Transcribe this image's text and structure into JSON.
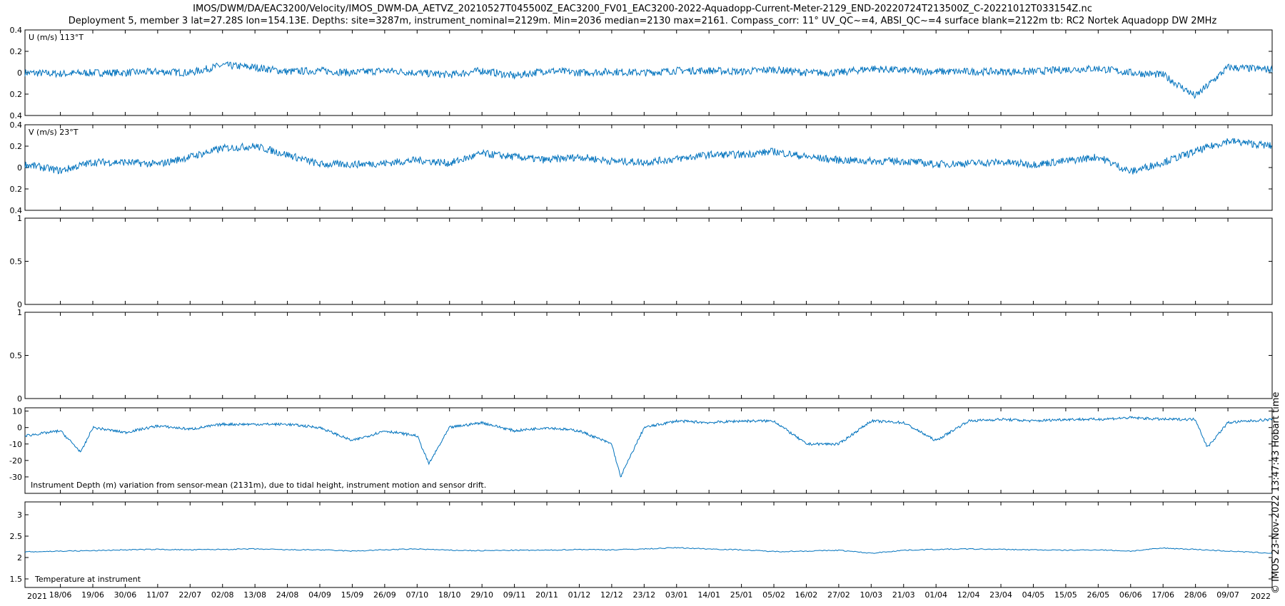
{
  "title": "IMOS/DWM/DA/EAC3200/Velocity/IMOS_DWM-DA_AETVZ_20210527T045500Z_EAC3200_FV01_EAC3200-2022-Aquadopp-Current-Meter-2129_END-20220724T213500Z_C-20221012T033154Z.nc",
  "subtitle": "Deployment 5, member 3 lat=27.28S lon=154.13E. Depths: site=3287m, instrument_nominal=2129m. Min=2036 median=2130 max=2161. Compass_corr: 11° UV_QC~=4, ABSI_QC~=4 surface blank=2122m tb: RC2 Nortek Aquadopp DW 2MHz",
  "stamp": "© IMOS 23-Nov-2022 13:47:43 Hobart time",
  "colors": {
    "series": "#0072BD",
    "axes": "#000000"
  },
  "chart_data": [
    {
      "type": "line",
      "label": "U (m/s) 113°T",
      "ylim": [
        -0.4,
        0.4
      ],
      "yticks": [
        0.4,
        0.2,
        0,
        -0.2,
        -0.4
      ],
      "ytick_labels": [
        "0.4",
        "0.2",
        "0",
        "0.2",
        "0.4"
      ],
      "x": [
        "2021-05-27",
        "2021-06-08",
        "2021-06-19",
        "2021-06-30",
        "2021-07-11",
        "2021-07-22",
        "2021-08-02",
        "2021-08-13",
        "2021-08-24",
        "2021-09-04",
        "2021-09-15",
        "2021-09-26",
        "2021-10-07",
        "2021-10-18",
        "2021-10-29",
        "2021-11-09",
        "2021-11-20",
        "2021-12-01",
        "2021-12-12",
        "2021-12-23",
        "2022-01-03",
        "2022-01-14",
        "2022-01-25",
        "2022-02-05",
        "2022-02-16",
        "2022-02-27",
        "2022-03-10",
        "2022-03-21",
        "2022-04-01",
        "2022-04-12",
        "2022-04-23",
        "2022-05-04",
        "2022-05-15",
        "2022-05-26",
        "2022-06-06",
        "2022-06-17",
        "2022-06-28",
        "2022-07-09",
        "2022-07-24"
      ],
      "y": [
        0.0,
        -0.01,
        0.0,
        0.0,
        0.01,
        0.0,
        0.07,
        0.05,
        0.01,
        0.02,
        0.0,
        0.02,
        0.0,
        -0.02,
        0.02,
        -0.03,
        0.02,
        0.0,
        0.01,
        0.0,
        0.02,
        0.02,
        0.01,
        0.03,
        0.0,
        0.0,
        0.04,
        0.02,
        0.01,
        0.01,
        0.01,
        0.01,
        0.03,
        0.04,
        0.0,
        -0.02,
        -0.22,
        0.05,
        0.03
      ]
    },
    {
      "type": "line",
      "label": "V (m/s) 23°T",
      "ylim": [
        -0.4,
        0.4
      ],
      "yticks": [
        0.4,
        0.2,
        0,
        -0.2,
        -0.4
      ],
      "ytick_labels": [
        "0.4",
        "0.2",
        "0",
        "0.2",
        "0.4"
      ],
      "x": [
        "2021-05-27",
        "2021-06-08",
        "2021-06-19",
        "2021-06-30",
        "2021-07-11",
        "2021-07-22",
        "2021-08-02",
        "2021-08-13",
        "2021-08-24",
        "2021-09-04",
        "2021-09-15",
        "2021-09-26",
        "2021-10-07",
        "2021-10-18",
        "2021-10-29",
        "2021-11-09",
        "2021-11-20",
        "2021-12-01",
        "2021-12-12",
        "2021-12-23",
        "2022-01-03",
        "2022-01-14",
        "2022-01-25",
        "2022-02-05",
        "2022-02-16",
        "2022-02-27",
        "2022-03-10",
        "2022-03-21",
        "2022-04-01",
        "2022-04-12",
        "2022-04-23",
        "2022-05-04",
        "2022-05-15",
        "2022-05-26",
        "2022-06-06",
        "2022-06-17",
        "2022-06-28",
        "2022-07-09",
        "2022-07-24"
      ],
      "y": [
        0.03,
        -0.03,
        0.05,
        0.05,
        0.03,
        0.1,
        0.18,
        0.2,
        0.12,
        0.03,
        0.03,
        0.04,
        0.07,
        0.04,
        0.13,
        0.1,
        0.07,
        0.1,
        0.06,
        0.05,
        0.08,
        0.12,
        0.12,
        0.15,
        0.1,
        0.07,
        0.06,
        0.06,
        0.03,
        0.04,
        0.05,
        0.03,
        0.06,
        0.1,
        -0.04,
        0.05,
        0.15,
        0.25,
        0.2
      ]
    },
    {
      "type": "line",
      "label": "",
      "ylim": [
        0,
        1
      ],
      "yticks": [
        1,
        0.5,
        0
      ],
      "ytick_labels": [
        "1",
        "0.5",
        "0"
      ],
      "x": [],
      "y": []
    },
    {
      "type": "line",
      "label": "",
      "ylim": [
        0,
        1
      ],
      "yticks": [
        1,
        0.5,
        0
      ],
      "ytick_labels": [
        "1",
        "0.5",
        "0"
      ],
      "x": [],
      "y": []
    },
    {
      "type": "line",
      "label": "Instrument Depth (m) variation from sensor-mean (2131m), due to tidal height, instrument motion and sensor drift.",
      "ylim": [
        -40,
        12
      ],
      "yticks": [
        10,
        0,
        -10,
        -20,
        -30
      ],
      "ytick_labels": [
        "10",
        "0",
        "-10",
        "-20",
        "-30"
      ],
      "x": [
        "2021-05-27",
        "2021-06-08",
        "2021-06-15",
        "2021-06-19",
        "2021-06-30",
        "2021-07-11",
        "2021-07-22",
        "2021-08-02",
        "2021-08-13",
        "2021-08-24",
        "2021-09-04",
        "2021-09-15",
        "2021-09-26",
        "2021-10-07",
        "2021-10-11",
        "2021-10-18",
        "2021-10-29",
        "2021-11-09",
        "2021-11-20",
        "2021-12-01",
        "2021-12-12",
        "2021-12-15",
        "2021-12-23",
        "2022-01-03",
        "2022-01-14",
        "2022-01-25",
        "2022-02-05",
        "2022-02-16",
        "2022-02-27",
        "2022-03-10",
        "2022-03-21",
        "2022-04-01",
        "2022-04-12",
        "2022-04-23",
        "2022-05-04",
        "2022-05-15",
        "2022-05-26",
        "2022-06-06",
        "2022-06-17",
        "2022-06-28",
        "2022-07-02",
        "2022-07-09",
        "2022-07-24"
      ],
      "y": [
        -5,
        -2,
        -15,
        0,
        -3,
        1,
        -1,
        2,
        2,
        2,
        0,
        -8,
        -2,
        -5,
        -22,
        0,
        3,
        -2,
        0,
        -2,
        -10,
        -30,
        0,
        4,
        3,
        4,
        4,
        -10,
        -10,
        4,
        3,
        -8,
        4,
        5,
        4,
        5,
        5,
        6,
        5,
        5,
        -12,
        3,
        5
      ]
    },
    {
      "type": "line",
      "label": "Temperature at instrument",
      "ylim": [
        1.3,
        3.3
      ],
      "yticks": [
        3,
        2.5,
        2,
        1.5
      ],
      "ytick_labels": [
        "3",
        "2.5",
        "2",
        "1.5"
      ],
      "xtick_labels": [
        "18/06",
        "19/06",
        "30/06",
        "11/07",
        "22/07",
        "02/08",
        "13/08",
        "24/08",
        "04/09",
        "15/09",
        "26/09",
        "07/10",
        "18/10",
        "29/10",
        "09/11",
        "20/11",
        "01/12",
        "12/12",
        "23/12",
        "03/01",
        "14/01",
        "25/01",
        "05/02",
        "16/02",
        "27/02",
        "10/03",
        "21/03",
        "01/04",
        "12/04",
        "23/04",
        "04/05",
        "15/05",
        "26/05",
        "06/06",
        "17/06",
        "28/06",
        "09/07"
      ],
      "year_start": "2021",
      "year_end": "2022",
      "x": [
        "2021-05-27",
        "2021-06-08",
        "2021-06-19",
        "2021-06-30",
        "2021-07-11",
        "2021-07-22",
        "2021-08-02",
        "2021-08-13",
        "2021-08-24",
        "2021-09-04",
        "2021-09-15",
        "2021-09-26",
        "2021-10-07",
        "2021-10-18",
        "2021-10-29",
        "2021-11-09",
        "2021-11-20",
        "2021-12-01",
        "2021-12-12",
        "2021-12-23",
        "2022-01-03",
        "2022-01-14",
        "2022-01-25",
        "2022-02-05",
        "2022-02-16",
        "2022-02-27",
        "2022-03-10",
        "2022-03-21",
        "2022-04-01",
        "2022-04-12",
        "2022-04-23",
        "2022-05-04",
        "2022-05-15",
        "2022-05-26",
        "2022-06-06",
        "2022-06-17",
        "2022-06-28",
        "2022-07-09",
        "2022-07-24"
      ],
      "y": [
        2.13,
        2.15,
        2.16,
        2.18,
        2.19,
        2.18,
        2.19,
        2.2,
        2.18,
        2.18,
        2.15,
        2.18,
        2.2,
        2.17,
        2.16,
        2.17,
        2.17,
        2.19,
        2.18,
        2.2,
        2.23,
        2.2,
        2.18,
        2.14,
        2.15,
        2.17,
        2.1,
        2.17,
        2.19,
        2.2,
        2.19,
        2.18,
        2.17,
        2.18,
        2.15,
        2.22,
        2.19,
        2.15,
        2.1
      ]
    }
  ]
}
